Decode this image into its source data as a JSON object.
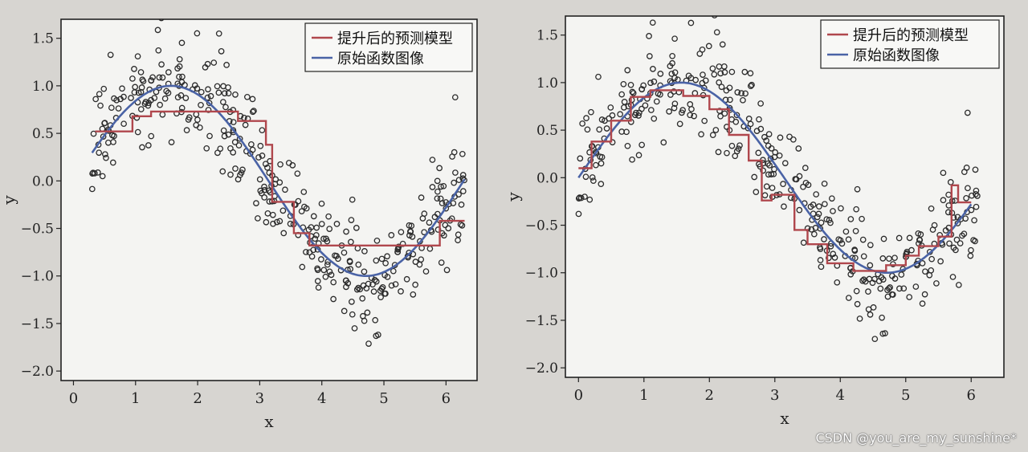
{
  "watermark": "CSDN @you_are_my_sunshine*",
  "colors": {
    "page": "#d7d5d1",
    "plot_bg": "#f4f4f2",
    "model": "#b0474d",
    "original": "#4a63a6",
    "points": "#2b2b2b"
  },
  "chart_data": [
    {
      "type": "scatter",
      "xlabel": "x",
      "ylabel": "y",
      "xlim": [
        -0.2,
        6.5
      ],
      "ylim": [
        -2.1,
        1.7
      ],
      "xticks": [
        0,
        1,
        2,
        3,
        4,
        5,
        6
      ],
      "yticks": [
        1.5,
        1.0,
        0.5,
        0.0,
        -0.5,
        -1.0,
        -1.5,
        -2.0
      ],
      "ytick_labels": [
        "1.5",
        "1.0",
        "0.5",
        "0.0",
        "−0.5",
        "−1.0",
        "−1.5",
        "−2.0"
      ],
      "legend": {
        "position": "top-right",
        "entries": [
          "提升后的预测模型",
          "原始函数图像"
        ]
      },
      "series": [
        {
          "name": "提升后的预测模型",
          "kind": "step",
          "x": [
            0.35,
            0.95,
            0.95,
            1.25,
            1.25,
            2.65,
            2.65,
            3.1,
            3.1,
            3.2,
            3.2,
            3.55,
            3.55,
            3.8,
            3.8,
            5.9,
            5.9,
            6.3
          ],
          "y": [
            0.52,
            0.52,
            0.68,
            0.68,
            0.73,
            0.73,
            0.63,
            0.63,
            0.38,
            0.38,
            -0.22,
            -0.22,
            -0.55,
            -0.55,
            -0.68,
            -0.68,
            -0.42,
            -0.42
          ]
        },
        {
          "name": "原始函数图像",
          "kind": "function",
          "function": "sin(x)",
          "x_range": [
            0.3,
            6.3
          ]
        },
        {
          "name": "samples",
          "kind": "scatter",
          "function": "sin(x) + noise",
          "noise_sd": 0.27,
          "n": 400,
          "x_range": [
            0.3,
            6.3
          ],
          "seed": 7
        }
      ]
    },
    {
      "type": "scatter",
      "xlabel": "x",
      "ylabel": "y",
      "xlim": [
        -0.2,
        6.5
      ],
      "ylim": [
        -2.1,
        1.7
      ],
      "xticks": [
        0,
        1,
        2,
        3,
        4,
        5,
        6
      ],
      "yticks": [
        1.5,
        1.0,
        0.5,
        0.0,
        -0.5,
        -1.0,
        -1.5,
        -2.0
      ],
      "ytick_labels": [
        "1.5",
        "1.0",
        "0.5",
        "0.0",
        "−0.5",
        "−1.0",
        "−1.5",
        "−2.0"
      ],
      "legend": {
        "position": "top-right",
        "entries": [
          "提升后的预测模型",
          "原始函数图像"
        ]
      },
      "series": [
        {
          "name": "提升后的预测模型",
          "kind": "step",
          "x": [
            0.0,
            0.2,
            0.2,
            0.5,
            0.5,
            0.8,
            0.8,
            1.1,
            1.1,
            1.6,
            1.6,
            2.0,
            2.0,
            2.3,
            2.3,
            2.6,
            2.6,
            2.8,
            2.8,
            2.95,
            2.95,
            3.3,
            3.3,
            3.5,
            3.5,
            3.8,
            3.8,
            4.2,
            4.2,
            4.7,
            4.7,
            5.0,
            5.0,
            5.2,
            5.2,
            5.5,
            5.5,
            5.7,
            5.7,
            5.8,
            5.8,
            6.0
          ],
          "y": [
            0.1,
            0.1,
            0.38,
            0.38,
            0.6,
            0.6,
            0.85,
            0.85,
            0.92,
            0.92,
            0.86,
            0.86,
            0.72,
            0.72,
            0.45,
            0.45,
            0.18,
            0.18,
            -0.24,
            -0.24,
            -0.18,
            -0.18,
            -0.55,
            -0.55,
            -0.7,
            -0.7,
            -0.9,
            -0.9,
            -0.98,
            -0.98,
            -0.92,
            -0.92,
            -0.82,
            -0.82,
            -0.72,
            -0.72,
            -0.62,
            -0.62,
            -0.08,
            -0.08,
            -0.26,
            -0.26
          ]
        },
        {
          "name": "原始函数图像",
          "kind": "function",
          "function": "sin(x)",
          "x_range": [
            0.0,
            6.0
          ]
        },
        {
          "name": "samples",
          "kind": "scatter",
          "function": "sin(x) + noise",
          "noise_sd": 0.27,
          "n": 400,
          "x_range": [
            0.0,
            6.1
          ],
          "seed": 7
        }
      ]
    }
  ]
}
